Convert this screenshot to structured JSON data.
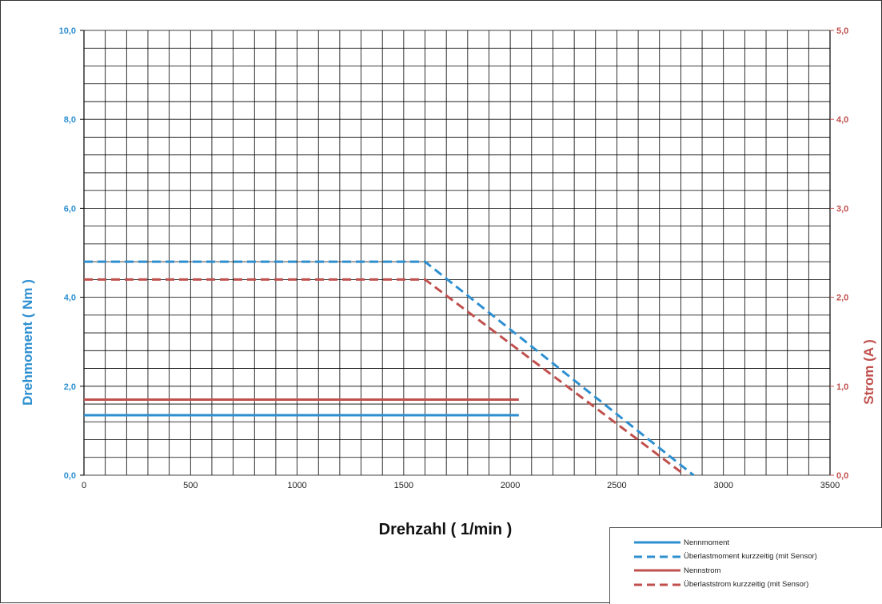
{
  "chart_data": {
    "type": "line",
    "xlabel": "Drehzahl ( 1/min )",
    "ylabel_left": "Drehmoment ( Nm )",
    "ylabel_right": "Strom (A )",
    "xlim": [
      0,
      3500
    ],
    "ylim_left": [
      0,
      10
    ],
    "ylim_right": [
      0,
      5
    ],
    "x_ticks": [
      "0",
      "500",
      "1000",
      "1500",
      "2000",
      "2500",
      "3000",
      "3500"
    ],
    "y_ticks_left": [
      "0,0",
      "2,0",
      "4,0",
      "6,0",
      "8,0",
      "10,0"
    ],
    "y_ticks_right": [
      "0,0",
      "1,0",
      "2,0",
      "3,0",
      "4,0",
      "5,0"
    ],
    "grid": true,
    "legend_position": "bottom-right",
    "series": [
      {
        "name": "Nennmoment",
        "axis": "left",
        "color": "#2e8fd0",
        "style": "solid",
        "x": [
          0,
          2040
        ],
        "y": [
          1.35,
          1.35
        ]
      },
      {
        "name": "Überlastmoment kurzzeitig (mit Sensor)",
        "axis": "left",
        "color": "#2e8fd0",
        "style": "dashed",
        "x": [
          0,
          1600,
          2860
        ],
        "y": [
          4.8,
          4.8,
          0
        ]
      },
      {
        "name": "Nennstrom",
        "axis": "right",
        "color": "#c0504d",
        "style": "solid",
        "x": [
          0,
          2040
        ],
        "y": [
          0.85,
          0.85
        ]
      },
      {
        "name": "Überlaststrom kurzzeitig (mit Sensor)",
        "axis": "right",
        "color": "#c0504d",
        "style": "dashed",
        "x": [
          0,
          1600,
          2820
        ],
        "y": [
          2.2,
          2.2,
          0
        ]
      }
    ]
  },
  "legend": {
    "items": [
      {
        "label": "Nennmoment",
        "color": "#2e8fd0",
        "style": "solid"
      },
      {
        "label": "Überlastmoment kurzzeitig (mit Sensor)",
        "color": "#2e8fd0",
        "style": "dashed"
      },
      {
        "label": "Nennstrom",
        "color": "#c0504d",
        "style": "solid"
      },
      {
        "label": "Überlaststrom kurzzeitig (mit Sensor)",
        "color": "#c0504d",
        "style": "dashed"
      }
    ]
  },
  "colors": {
    "torque": "#2e8fd0",
    "current": "#c0504d",
    "grid": "#000000"
  }
}
